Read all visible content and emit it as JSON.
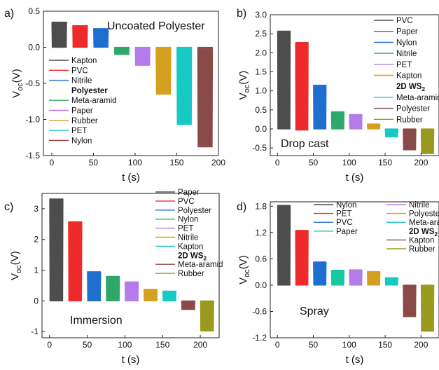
{
  "panels": [
    {
      "label": "a)",
      "annotation": "Uncoated Polyester",
      "xlabel": "t (s)",
      "ylabel_main": "V",
      "ylabel_sub": "oc",
      "ylabel_unit": "(V)",
      "xlim": [
        -10,
        200
      ],
      "ylim": [
        -1.5,
        0.5
      ],
      "xticks": [
        0,
        50,
        100,
        150,
        200
      ],
      "yticks": [
        -1.5,
        -1.0,
        -0.5,
        0.0,
        0.5
      ],
      "ytick_labels": [
        "-1.5",
        "-1.0",
        "-0.5",
        "0.0",
        "0.5"
      ],
      "legend_position": "center-left",
      "legend_columns": 1,
      "legend": [
        {
          "name": "Kapton",
          "color": "#4d4d4d"
        },
        {
          "name": "PVC",
          "color": "#ee2a2a"
        },
        {
          "name": "Nitrile",
          "color": "#1f6fd1"
        },
        {
          "name": "Polyester",
          "color": "",
          "bold": true
        },
        {
          "name": "Meta-aramid",
          "color": "#2ea86a"
        },
        {
          "name": "Paper",
          "color": "#b57bea"
        },
        {
          "name": "Rubber",
          "color": "#d4a020"
        },
        {
          "name": "PET",
          "color": "#17c9c4"
        },
        {
          "name": "Nylon",
          "color": "#8b4a4a"
        }
      ],
      "segments": [
        {
          "t_start": 0,
          "t_end": 18,
          "high": 0.35,
          "low": 0.0
        },
        {
          "t_start": 25,
          "t_end": 43,
          "high": 0.3,
          "low": 0.0
        },
        {
          "t_start": 50,
          "t_end": 68,
          "high": 0.26,
          "low": 0.0
        },
        {
          "t_start": 75,
          "t_end": 93,
          "high": 0.0,
          "low": -0.1
        },
        {
          "t_start": 100,
          "t_end": 118,
          "high": 0.0,
          "low": -0.25
        },
        {
          "t_start": 125,
          "t_end": 143,
          "high": 0.0,
          "low": -0.65
        },
        {
          "t_start": 150,
          "t_end": 168,
          "high": 0.0,
          "low": -1.07
        },
        {
          "t_start": 175,
          "t_end": 193,
          "high": 0.0,
          "low": -1.38
        }
      ]
    },
    {
      "label": "b)",
      "annotation": "Drop cast",
      "xlabel": "t (s)",
      "ylabel_main": "V",
      "ylabel_sub": "oc",
      "ylabel_unit": "(V)",
      "xlim": [
        -10,
        225
      ],
      "ylim": [
        -0.7,
        3.0
      ],
      "xticks": [
        0,
        50,
        100,
        150,
        200
      ],
      "yticks": [
        -0.5,
        0.0,
        0.5,
        1.0,
        1.5,
        2.0,
        2.5,
        3.0
      ],
      "ytick_labels": [
        "-0.5",
        "0.0",
        "0.5",
        "1.0",
        "1.5",
        "2.0",
        "2.5",
        "3.0"
      ],
      "legend_position": "top-right",
      "legend_columns": 1,
      "legend": [
        {
          "name": "PVC",
          "color": "#4d4d4d"
        },
        {
          "name": "Paper",
          "color": "#ee2a2a"
        },
        {
          "name": "Nylon",
          "color": "#1f6fd1"
        },
        {
          "name": "Nitrile",
          "color": "#2ea86a"
        },
        {
          "name": "PET",
          "color": "#b57bea"
        },
        {
          "name": "Kapton",
          "color": "#d4a020"
        },
        {
          "name": "2D WS",
          "sub": "2",
          "color": "",
          "bold": true
        },
        {
          "name": "Meta-aramid",
          "color": "#17c9c4"
        },
        {
          "name": "Polyester",
          "color": "#8b4a4a"
        },
        {
          "name": "Rubber",
          "color": "#9a9a1e"
        }
      ],
      "segments": [
        {
          "t_start": 0,
          "t_end": 18,
          "high": 2.57,
          "low": 0.0
        },
        {
          "t_start": 25,
          "t_end": 43,
          "high": 2.27,
          "low": -0.03
        },
        {
          "t_start": 50,
          "t_end": 68,
          "high": 1.15,
          "low": 0.0
        },
        {
          "t_start": 75,
          "t_end": 93,
          "high": 0.45,
          "low": 0.0
        },
        {
          "t_start": 100,
          "t_end": 118,
          "high": 0.38,
          "low": 0.0
        },
        {
          "t_start": 125,
          "t_end": 143,
          "high": 0.13,
          "low": 0.0
        },
        {
          "t_start": 150,
          "t_end": 168,
          "high": 0.0,
          "low": -0.21
        },
        {
          "t_start": 175,
          "t_end": 193,
          "high": 0.0,
          "low": -0.55
        },
        {
          "t_start": 200,
          "t_end": 218,
          "high": 0.0,
          "low": -0.65
        }
      ]
    },
    {
      "label": "c)",
      "annotation": "Immersion",
      "xlabel": "t (s)",
      "ylabel_main": "V",
      "ylabel_sub": "oc",
      "ylabel_unit": "(V)",
      "xlim": [
        -10,
        225
      ],
      "ylim": [
        -1.2,
        3.5
      ],
      "xticks": [
        0,
        50,
        100,
        150,
        200
      ],
      "yticks": [
        -1,
        0,
        1,
        2,
        3
      ],
      "ytick_labels": [
        "-1",
        "0",
        "1",
        "2",
        "3"
      ],
      "legend_position": "top-right",
      "legend_columns": 1,
      "legend": [
        {
          "name": "Paper",
          "color": "#4d4d4d"
        },
        {
          "name": "PVC",
          "color": "#ee2a2a"
        },
        {
          "name": "Polyester",
          "color": "#1f6fd1"
        },
        {
          "name": "Nylon",
          "color": "#2ea86a"
        },
        {
          "name": "PET",
          "color": "#b57bea"
        },
        {
          "name": "Nitrile",
          "color": "#d4a020"
        },
        {
          "name": "Kapton",
          "color": "#17c9c4"
        },
        {
          "name": "2D WS",
          "sub": "2",
          "color": "",
          "bold": true
        },
        {
          "name": "Meta-aramid",
          "color": "#8b4a4a"
        },
        {
          "name": "Rubber",
          "color": "#9a9a1e"
        }
      ],
      "segments": [
        {
          "t_start": 0,
          "t_end": 18,
          "high": 3.32,
          "low": 0.0
        },
        {
          "t_start": 25,
          "t_end": 43,
          "high": 2.58,
          "low": 0.0
        },
        {
          "t_start": 50,
          "t_end": 68,
          "high": 0.95,
          "low": 0.0
        },
        {
          "t_start": 75,
          "t_end": 93,
          "high": 0.8,
          "low": 0.0
        },
        {
          "t_start": 100,
          "t_end": 118,
          "high": 0.62,
          "low": 0.0
        },
        {
          "t_start": 125,
          "t_end": 143,
          "high": 0.38,
          "low": 0.0
        },
        {
          "t_start": 150,
          "t_end": 168,
          "high": 0.32,
          "low": 0.0
        },
        {
          "t_start": 175,
          "t_end": 193,
          "high": 0.0,
          "low": -0.28
        },
        {
          "t_start": 200,
          "t_end": 218,
          "high": 0.0,
          "low": -0.98
        }
      ]
    },
    {
      "label": "d)",
      "annotation": "Spray",
      "xlabel": "t (s)",
      "ylabel_main": "V",
      "ylabel_sub": "oc",
      "ylabel_unit": "(V)",
      "xlim": [
        -10,
        225
      ],
      "ylim": [
        -1.2,
        1.9
      ],
      "xticks": [
        0,
        50,
        100,
        150,
        200
      ],
      "yticks": [
        -1.2,
        -0.6,
        0.0,
        0.6,
        1.2,
        1.8
      ],
      "ytick_labels": [
        "-1.2",
        "-0.6",
        "0.0",
        "0.6",
        "1.2",
        "1.8"
      ],
      "legend_position": "top-right",
      "legend_columns": 2,
      "legend": [
        {
          "name": "Nylon",
          "color": "#4d4d4d"
        },
        {
          "name": "PET",
          "color": "#ee2a2a"
        },
        {
          "name": "PVC",
          "color": "#1f6fd1"
        },
        {
          "name": "Paper",
          "color": "#17c9a0"
        },
        {
          "name": "Nitrile",
          "color": "#b57bea"
        },
        {
          "name": "Polyester",
          "color": "#d4a020"
        },
        {
          "name": "Meta-aramid",
          "color": "#17c9c4"
        },
        {
          "name": "2D WS",
          "sub": "2",
          "color": "",
          "bold": true
        },
        {
          "name": "Kapton",
          "color": "#8b4a4a"
        },
        {
          "name": "Rubber",
          "color": "#9a9a1e"
        }
      ],
      "segments": [
        {
          "t_start": 0,
          "t_end": 18,
          "high": 1.82,
          "low": 0.0
        },
        {
          "t_start": 25,
          "t_end": 43,
          "high": 1.25,
          "low": 0.0
        },
        {
          "t_start": 50,
          "t_end": 68,
          "high": 0.53,
          "low": 0.0
        },
        {
          "t_start": 75,
          "t_end": 93,
          "high": 0.34,
          "low": 0.0
        },
        {
          "t_start": 100,
          "t_end": 118,
          "high": 0.35,
          "low": 0.0
        },
        {
          "t_start": 125,
          "t_end": 143,
          "high": 0.31,
          "low": 0.0
        },
        {
          "t_start": 150,
          "t_end": 168,
          "high": 0.17,
          "low": 0.0
        },
        {
          "t_start": 175,
          "t_end": 193,
          "high": 0.0,
          "low": -0.72
        },
        {
          "t_start": 200,
          "t_end": 218,
          "high": 0.0,
          "low": -1.05
        }
      ]
    }
  ]
}
